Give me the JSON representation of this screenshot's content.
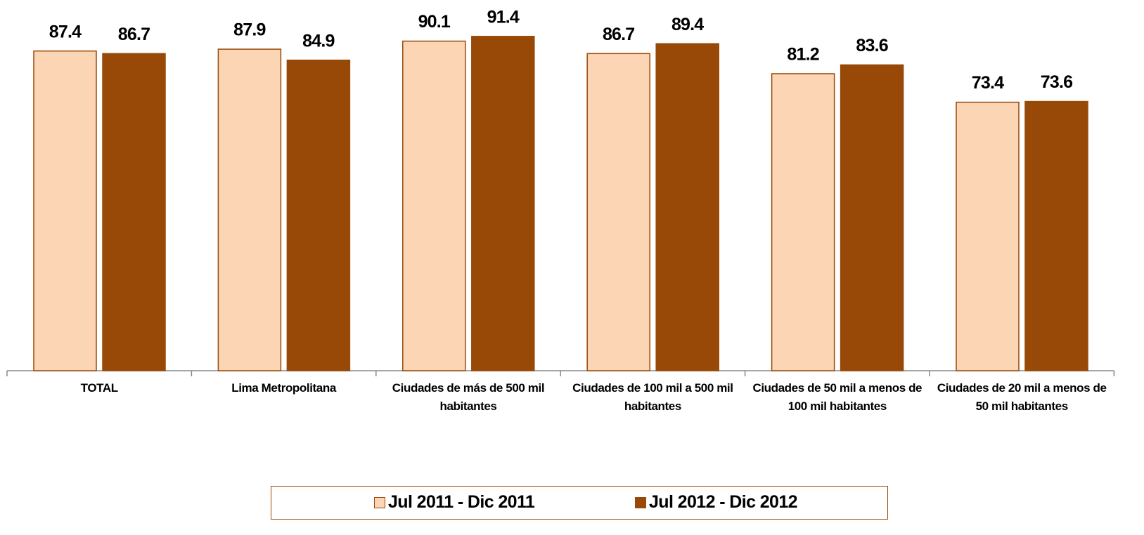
{
  "chart_data": {
    "type": "bar",
    "categories": [
      "TOTAL",
      "Lima Metropolitana",
      "Ciudades de más de 500 mil habitantes",
      "Ciudades de 100 mil a 500 mil habitantes",
      "Ciudades de 50 mil a menos de 100 mil habitantes",
      "Ciudades de 20 mil a menos de 50 mil habitantes"
    ],
    "series": [
      {
        "name": "Jul 2011 - Dic 2011",
        "color": "#fcd5b5",
        "values": [
          87.4,
          87.9,
          90.1,
          86.7,
          81.2,
          73.4
        ]
      },
      {
        "name": "Jul 2012 - Dic 2012",
        "color": "#984807",
        "values": [
          86.7,
          84.9,
          91.4,
          89.4,
          83.6,
          73.6
        ]
      }
    ],
    "ylim": [
      0,
      100
    ],
    "grid": false,
    "legend": "bottom"
  }
}
